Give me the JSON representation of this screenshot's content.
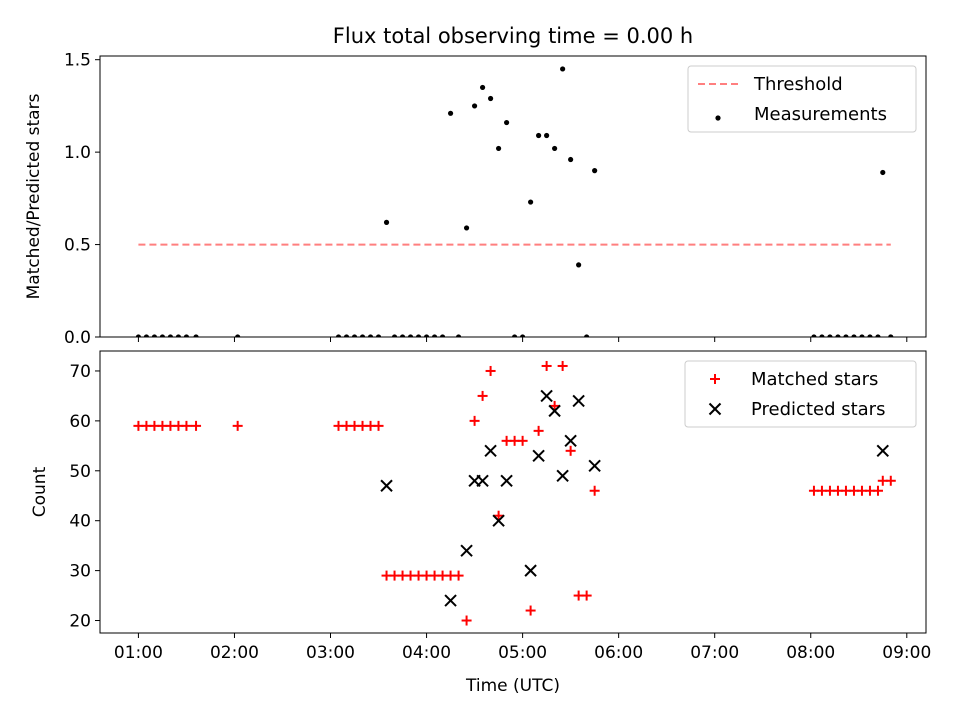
{
  "chart_data": [
    {
      "type": "scatter",
      "title": "Flux total observing time = 0.00 h",
      "ylabel": "Matched/Predicted stars",
      "xlim": [
        "00:36",
        "09:12"
      ],
      "ylim": [
        0,
        1.52
      ],
      "x_ticks": [
        "01:00",
        "02:00",
        "03:00",
        "04:00",
        "05:00",
        "06:00",
        "07:00",
        "08:00",
        "09:00"
      ],
      "y_ticks": [
        "0.0",
        "0.5",
        "1.0",
        "1.5"
      ],
      "y_tick_values": [
        0,
        0.5,
        1.0,
        1.5
      ],
      "legend_position": "upper right",
      "threshold": {
        "name": "Threshold",
        "color": "#ff7f7f",
        "y": 0.5,
        "x_range": [
          "01:00",
          "08:50"
        ]
      },
      "series": [
        {
          "name": "Measurements",
          "color": "#000000",
          "marker": "dot",
          "points": [
            [
              "01:00",
              0
            ],
            [
              "01:05",
              0
            ],
            [
              "01:10",
              0
            ],
            [
              "01:15",
              0
            ],
            [
              "01:20",
              0
            ],
            [
              "01:25",
              0
            ],
            [
              "01:30",
              0
            ],
            [
              "01:36",
              0
            ],
            [
              "02:02",
              0
            ],
            [
              "03:05",
              0
            ],
            [
              "03:10",
              0
            ],
            [
              "03:15",
              0
            ],
            [
              "03:20",
              0
            ],
            [
              "03:25",
              0
            ],
            [
              "03:30",
              0
            ],
            [
              "03:35",
              0.62
            ],
            [
              "03:40",
              0
            ],
            [
              "03:45",
              0
            ],
            [
              "03:50",
              0
            ],
            [
              "03:55",
              0
            ],
            [
              "04:00",
              0
            ],
            [
              "04:05",
              0
            ],
            [
              "04:10",
              0
            ],
            [
              "04:15",
              1.21
            ],
            [
              "04:20",
              0
            ],
            [
              "04:25",
              0.59
            ],
            [
              "04:30",
              1.25
            ],
            [
              "04:35",
              1.35
            ],
            [
              "04:40",
              1.29
            ],
            [
              "04:45",
              1.02
            ],
            [
              "04:50",
              1.16
            ],
            [
              "04:55",
              0
            ],
            [
              "05:00",
              0
            ],
            [
              "05:05",
              0.73
            ],
            [
              "05:10",
              1.09
            ],
            [
              "05:15",
              1.09
            ],
            [
              "05:20",
              1.02
            ],
            [
              "05:25",
              1.45
            ],
            [
              "05:30",
              0.96
            ],
            [
              "05:35",
              0.39
            ],
            [
              "05:40",
              0
            ],
            [
              "05:45",
              0.9
            ],
            [
              "08:02",
              0
            ],
            [
              "08:07",
              0
            ],
            [
              "08:12",
              0
            ],
            [
              "08:17",
              0
            ],
            [
              "08:22",
              0
            ],
            [
              "08:27",
              0
            ],
            [
              "08:32",
              0
            ],
            [
              "08:37",
              0
            ],
            [
              "08:42",
              0
            ],
            [
              "08:45",
              0.89
            ],
            [
              "08:50",
              0
            ]
          ]
        }
      ]
    },
    {
      "type": "scatter",
      "xlabel": "Time (UTC)",
      "ylabel": "Count",
      "xlim": [
        "00:36",
        "09:12"
      ],
      "ylim": [
        17.5,
        74
      ],
      "x_ticks": [
        "01:00",
        "02:00",
        "03:00",
        "04:00",
        "05:00",
        "06:00",
        "07:00",
        "08:00",
        "09:00"
      ],
      "y_ticks": [
        "20",
        "30",
        "40",
        "50",
        "60",
        "70"
      ],
      "y_tick_values": [
        20,
        30,
        40,
        50,
        60,
        70
      ],
      "legend_position": "upper right",
      "series": [
        {
          "name": "Matched stars",
          "color": "#ff0000",
          "marker": "plus",
          "points": [
            [
              "01:00",
              59
            ],
            [
              "01:05",
              59
            ],
            [
              "01:10",
              59
            ],
            [
              "01:15",
              59
            ],
            [
              "01:20",
              59
            ],
            [
              "01:25",
              59
            ],
            [
              "01:30",
              59
            ],
            [
              "01:36",
              59
            ],
            [
              "02:02",
              59
            ],
            [
              "03:05",
              59
            ],
            [
              "03:10",
              59
            ],
            [
              "03:15",
              59
            ],
            [
              "03:20",
              59
            ],
            [
              "03:25",
              59
            ],
            [
              "03:30",
              59
            ],
            [
              "03:35",
              29
            ],
            [
              "03:40",
              29
            ],
            [
              "03:45",
              29
            ],
            [
              "03:50",
              29
            ],
            [
              "03:55",
              29
            ],
            [
              "04:00",
              29
            ],
            [
              "04:05",
              29
            ],
            [
              "04:10",
              29
            ],
            [
              "04:15",
              29
            ],
            [
              "04:20",
              29
            ],
            [
              "04:25",
              20
            ],
            [
              "04:30",
              60
            ],
            [
              "04:35",
              65
            ],
            [
              "04:40",
              70
            ],
            [
              "04:45",
              41
            ],
            [
              "04:50",
              56
            ],
            [
              "04:55",
              56
            ],
            [
              "05:00",
              56
            ],
            [
              "05:05",
              22
            ],
            [
              "05:10",
              58
            ],
            [
              "05:15",
              71
            ],
            [
              "05:20",
              63
            ],
            [
              "05:25",
              71
            ],
            [
              "05:30",
              54
            ],
            [
              "05:35",
              25
            ],
            [
              "05:40",
              25
            ],
            [
              "05:45",
              46
            ],
            [
              "08:02",
              46
            ],
            [
              "08:07",
              46
            ],
            [
              "08:12",
              46
            ],
            [
              "08:17",
              46
            ],
            [
              "08:22",
              46
            ],
            [
              "08:27",
              46
            ],
            [
              "08:32",
              46
            ],
            [
              "08:37",
              46
            ],
            [
              "08:42",
              46
            ],
            [
              "08:45",
              48
            ],
            [
              "08:50",
              48
            ]
          ]
        },
        {
          "name": "Predicted stars",
          "color": "#000000",
          "marker": "x",
          "points": [
            [
              "03:35",
              47
            ],
            [
              "04:15",
              24
            ],
            [
              "04:25",
              34
            ],
            [
              "04:30",
              48
            ],
            [
              "04:35",
              48
            ],
            [
              "04:40",
              54
            ],
            [
              "04:45",
              40
            ],
            [
              "04:50",
              48
            ],
            [
              "05:05",
              30
            ],
            [
              "05:10",
              53
            ],
            [
              "05:15",
              65
            ],
            [
              "05:20",
              62
            ],
            [
              "05:25",
              49
            ],
            [
              "05:30",
              56
            ],
            [
              "05:35",
              64
            ],
            [
              "05:45",
              51
            ],
            [
              "08:45",
              54
            ]
          ]
        }
      ]
    }
  ]
}
